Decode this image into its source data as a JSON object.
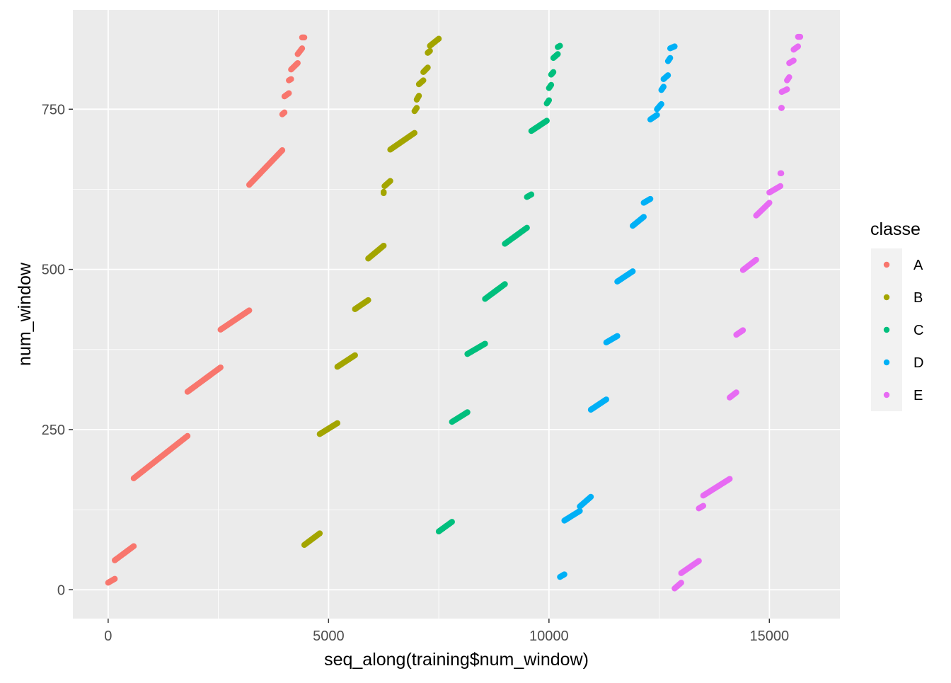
{
  "chart_data": {
    "type": "scatter",
    "title": "",
    "xlabel": "seq_along(training$num_window)",
    "ylabel": "num_window",
    "xlim": [
      -800,
      16600
    ],
    "ylim": [
      -45,
      905
    ],
    "x_ticks": [
      0,
      5000,
      10000,
      15000
    ],
    "x_tick_labels": [
      "0",
      "5000",
      "10000",
      "15000"
    ],
    "y_ticks": [
      0,
      250,
      500,
      750
    ],
    "y_tick_labels": [
      "0",
      "250",
      "500",
      "750"
    ],
    "grid": true,
    "legend": {
      "title": "classe",
      "placement": "right"
    },
    "series": [
      {
        "name": "A",
        "color": "#F8766D",
        "segments": [
          [
            0,
            11,
            150,
            17
          ],
          [
            150,
            46,
            580,
            68
          ],
          [
            580,
            174,
            1800,
            240
          ],
          [
            1800,
            309,
            2550,
            347
          ],
          [
            2550,
            406,
            3200,
            436
          ],
          [
            3200,
            632,
            3950,
            686
          ],
          [
            3950,
            742,
            4000,
            745
          ],
          [
            4000,
            770,
            4100,
            775
          ],
          [
            4100,
            795,
            4150,
            797
          ],
          [
            4150,
            812,
            4300,
            822
          ],
          [
            4300,
            836,
            4400,
            845
          ],
          [
            4400,
            862,
            4450,
            862
          ]
        ]
      },
      {
        "name": "B",
        "color": "#A3A500",
        "segments": [
          [
            4450,
            70,
            4800,
            88
          ],
          [
            4800,
            243,
            5200,
            260
          ],
          [
            5200,
            348,
            5600,
            366
          ],
          [
            5600,
            438,
            5900,
            452
          ],
          [
            5900,
            517,
            6250,
            537
          ],
          [
            6250,
            619,
            6250,
            621
          ],
          [
            6270,
            630,
            6400,
            638
          ],
          [
            6400,
            687,
            6950,
            713
          ],
          [
            6950,
            747,
            7000,
            752
          ],
          [
            7000,
            765,
            7050,
            771
          ],
          [
            7050,
            789,
            7150,
            795
          ],
          [
            7150,
            808,
            7250,
            815
          ],
          [
            7250,
            838,
            7300,
            841
          ],
          [
            7300,
            849,
            7500,
            860
          ]
        ]
      },
      {
        "name": "C",
        "color": "#00BF7D",
        "segments": [
          [
            7500,
            91,
            7800,
            106
          ],
          [
            7800,
            262,
            8150,
            277
          ],
          [
            8150,
            368,
            8550,
            384
          ],
          [
            8550,
            454,
            9000,
            477
          ],
          [
            9000,
            540,
            9500,
            565
          ],
          [
            9500,
            613,
            9600,
            617
          ],
          [
            9600,
            716,
            9950,
            732
          ],
          [
            9950,
            759,
            10000,
            764
          ],
          [
            10000,
            783,
            10050,
            788
          ],
          [
            10050,
            804,
            10100,
            808
          ],
          [
            10100,
            830,
            10200,
            836
          ],
          [
            10200,
            847,
            10250,
            849
          ]
        ]
      },
      {
        "name": "D",
        "color": "#00B0F6",
        "segments": [
          [
            10250,
            20,
            10350,
            24
          ],
          [
            10350,
            108,
            10700,
            123
          ],
          [
            10700,
            130,
            10950,
            145
          ],
          [
            10950,
            281,
            11300,
            297
          ],
          [
            11300,
            386,
            11550,
            396
          ],
          [
            11550,
            481,
            11900,
            497
          ],
          [
            11900,
            568,
            12150,
            582
          ],
          [
            12150,
            604,
            12300,
            610
          ],
          [
            12300,
            734,
            12450,
            741
          ],
          [
            12450,
            750,
            12550,
            758
          ],
          [
            12550,
            780,
            12600,
            785
          ],
          [
            12600,
            797,
            12700,
            803
          ],
          [
            12700,
            825,
            12750,
            830
          ],
          [
            12750,
            845,
            12850,
            848
          ]
        ]
      },
      {
        "name": "E",
        "color": "#E76BF3",
        "segments": [
          [
            12850,
            2,
            13000,
            11
          ],
          [
            13000,
            26,
            13400,
            45
          ],
          [
            13400,
            127,
            13500,
            131
          ],
          [
            13500,
            147,
            14100,
            173
          ],
          [
            14100,
            300,
            14250,
            308
          ],
          [
            14250,
            398,
            14400,
            405
          ],
          [
            14400,
            499,
            14700,
            515
          ],
          [
            14700,
            584,
            15000,
            604
          ],
          [
            15000,
            620,
            15250,
            630
          ],
          [
            15250,
            650,
            15270,
            650
          ],
          [
            15270,
            752,
            15280,
            752
          ],
          [
            15280,
            777,
            15400,
            781
          ],
          [
            15400,
            795,
            15450,
            800
          ],
          [
            15450,
            822,
            15550,
            826
          ],
          [
            15550,
            843,
            15650,
            848
          ],
          [
            15650,
            863,
            15700,
            863
          ]
        ]
      }
    ]
  }
}
